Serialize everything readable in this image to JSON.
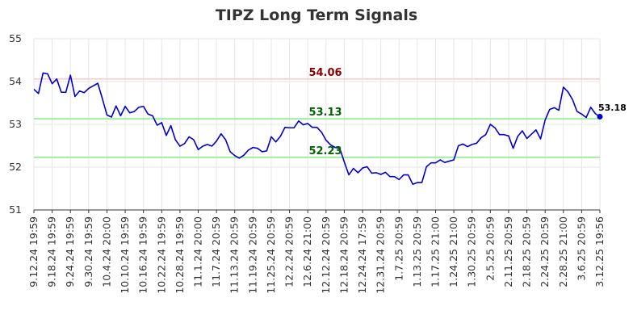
{
  "chart_data": {
    "type": "line",
    "title": "TIPZ Long Term Signals",
    "xlabel": "",
    "ylabel": "",
    "ylim": [
      51,
      55
    ],
    "yticks": [
      51,
      52,
      53,
      54,
      55
    ],
    "grid": true,
    "x_tick_labels": [
      "9.12.24 19:59",
      "9.18.24 19:59",
      "9.24.24 19:59",
      "9.30.24 19:59",
      "10.4.24 20:00",
      "10.10.24 19:59",
      "10.16.24 19:59",
      "10.22.24 19:59",
      "10.28.24 19:59",
      "11.1.24 20:00",
      "11.7.24 20:59",
      "11.13.24 20:59",
      "11.19.24 20:59",
      "11.25.24 20:59",
      "12.2.24 20:59",
      "12.6.24 21:00",
      "12.12.24 20:59",
      "12.18.24 20:59",
      "12.24.24 17:59",
      "12.31.24 20:59",
      "1.7.25 20:59",
      "1.13.25 20:59",
      "1.17.25 21:00",
      "1.24.25 21:00",
      "1.30.25 20:59",
      "2.5.25 20:59",
      "2.11.25 20:59",
      "2.18.25 20:59",
      "2.24.25 20:59",
      "2.28.25 21:00",
      "3.6.25 20:59",
      "3.12.25 19:56"
    ],
    "reference_lines": [
      {
        "value": 54.06,
        "label": "54.06",
        "line_color": "#ffcccc",
        "label_color": "#8b0000"
      },
      {
        "value": 53.13,
        "label": "53.13",
        "line_color": "#90ee90",
        "label_color": "#006400"
      },
      {
        "value": 52.23,
        "label": "52.23",
        "line_color": "#90ee90",
        "label_color": "#006400"
      }
    ],
    "series": [
      {
        "color": "#0000cc",
        "values": [
          53.82,
          53.72,
          54.2,
          54.18,
          53.95,
          54.06,
          53.75,
          53.75,
          54.15,
          53.65,
          53.78,
          53.74,
          53.84,
          53.9,
          53.96,
          53.6,
          53.22,
          53.17,
          53.43,
          53.2,
          53.42,
          53.27,
          53.3,
          53.4,
          53.42,
          53.24,
          53.2,
          52.98,
          53.04,
          52.74,
          52.97,
          52.64,
          52.49,
          52.55,
          52.71,
          52.64,
          52.41,
          52.49,
          52.53,
          52.49,
          52.61,
          52.78,
          52.64,
          52.36,
          52.27,
          52.21,
          52.28,
          52.4,
          52.46,
          52.44,
          52.36,
          52.38,
          52.71,
          52.59,
          52.72,
          52.93,
          52.92,
          52.92,
          53.08,
          52.99,
          53.02,
          52.93,
          52.93,
          52.82,
          52.63,
          52.52,
          52.46,
          52.44,
          52.12,
          51.82,
          51.97,
          51.87,
          51.98,
          52.01,
          51.86,
          51.87,
          51.83,
          51.88,
          51.78,
          51.78,
          51.71,
          51.82,
          51.82,
          51.6,
          51.64,
          51.64,
          52.01,
          52.1,
          52.1,
          52.17,
          52.11,
          52.14,
          52.17,
          52.5,
          52.54,
          52.48,
          52.53,
          52.56,
          52.69,
          52.76,
          53.0,
          52.92,
          52.76,
          52.76,
          52.73,
          52.44,
          52.72,
          52.85,
          52.67,
          52.77,
          52.87,
          52.66,
          53.1,
          53.35,
          53.39,
          53.33,
          53.87,
          53.76,
          53.58,
          53.3,
          53.24,
          53.16,
          53.4,
          53.25,
          53.18
        ]
      }
    ],
    "last_value_label": "53.18"
  }
}
